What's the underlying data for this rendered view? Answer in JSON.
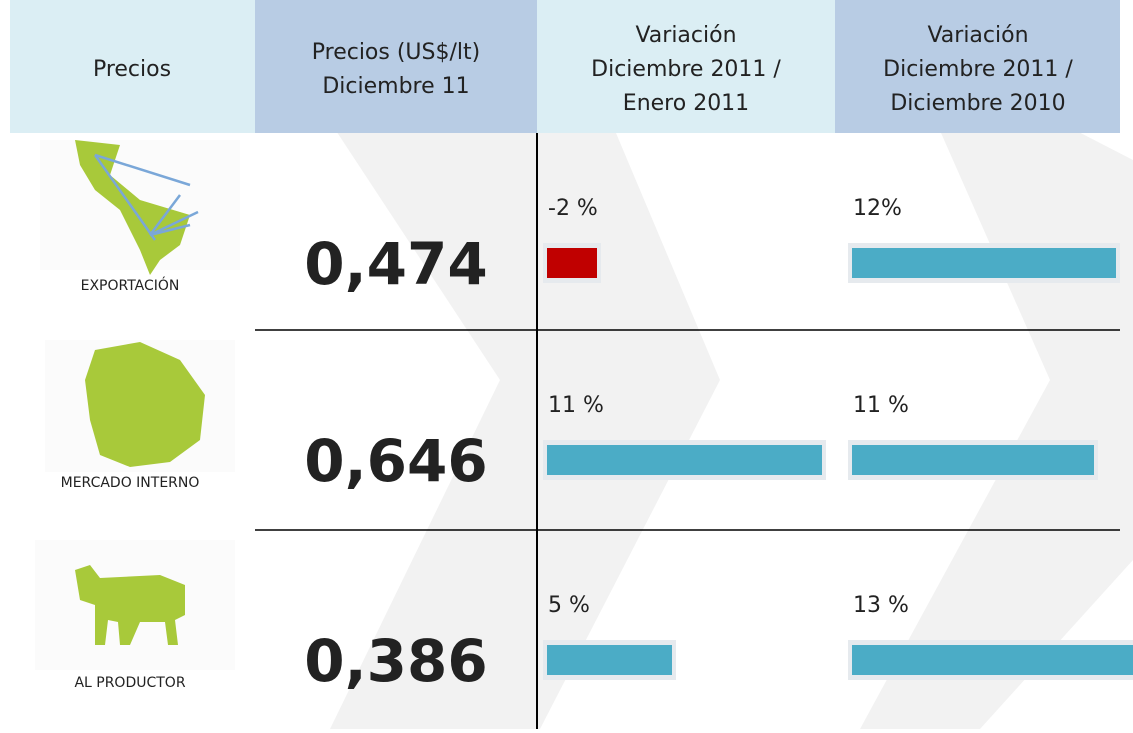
{
  "header": {
    "columns": [
      "Precios",
      "Precios (US$/lt)\nDiciembre 11",
      "Variación\nDiciembre 2011 /\nEnero 2011",
      "Variación\nDiciembre 2011 /\nDiciembre 2010"
    ]
  },
  "bar_colors": {
    "positive": "#4bacc6",
    "negative": "#c00000"
  },
  "rows": [
    {
      "label": "EXPORTACIÓN",
      "price": "0,474",
      "var_month": {
        "value": -2,
        "label": "-2 %"
      },
      "var_year": {
        "value": 12,
        "label": "12%"
      }
    },
    {
      "label": "MERCADO INTERNO",
      "price": "0,646",
      "var_month": {
        "value": 11,
        "label": "11 %"
      },
      "var_year": {
        "value": 11,
        "label": "11 %"
      }
    },
    {
      "label": "AL PRODUCTOR",
      "price": "0,386",
      "var_month": {
        "value": 5,
        "label": "5 %"
      },
      "var_year": {
        "value": 13,
        "label": "13 %"
      }
    }
  ]
}
